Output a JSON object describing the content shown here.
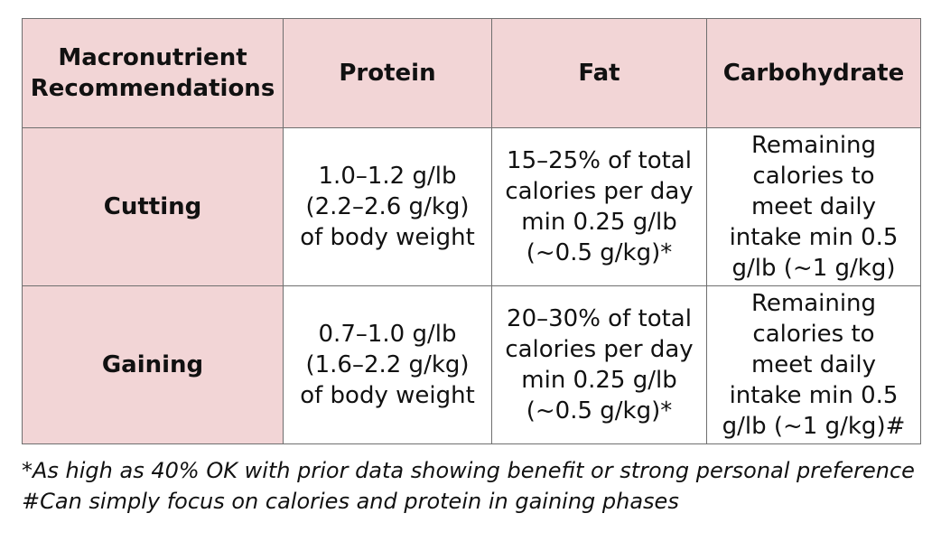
{
  "table": {
    "header": {
      "label_lines": [
        "Macronutrient",
        "Recommendations"
      ],
      "protein": "Protein",
      "fat": "Fat",
      "carbohydrate": "Carbohydrate"
    },
    "rows": [
      {
        "label": "Cutting",
        "protein_lines": [
          "1.0–1.2 g/lb",
          "(2.2–2.6 g/kg)",
          "of body weight"
        ],
        "fat_lines": [
          "15–25% of total",
          "calories per day",
          "min 0.25 g/lb",
          "(~0.5 g/kg)*"
        ],
        "carb_lines": [
          "Remaining",
          "calories to",
          "meet daily",
          "intake min 0.5",
          "g/lb (~1 g/kg)"
        ]
      },
      {
        "label": "Gaining",
        "protein_lines": [
          "0.7–1.0 g/lb",
          "(1.6–2.2 g/kg)",
          "of body weight"
        ],
        "fat_lines": [
          "20–30% of total",
          "calories per day",
          "min 0.25 g/lb",
          "(~0.5 g/kg)*"
        ],
        "carb_lines": [
          "Remaining",
          "calories to",
          "meet daily",
          "intake min 0.5",
          "g/lb (~1 g/kg)#"
        ]
      }
    ]
  },
  "footnotes": {
    "asterisk": "*As high as 40% OK with prior data showing benefit or strong personal preference",
    "hash": "#Can simply focus on calories and protein in gaining phases"
  },
  "colors": {
    "header_fill": "#f2d5d6",
    "border": "#6f6f6f",
    "text": "#111111"
  }
}
